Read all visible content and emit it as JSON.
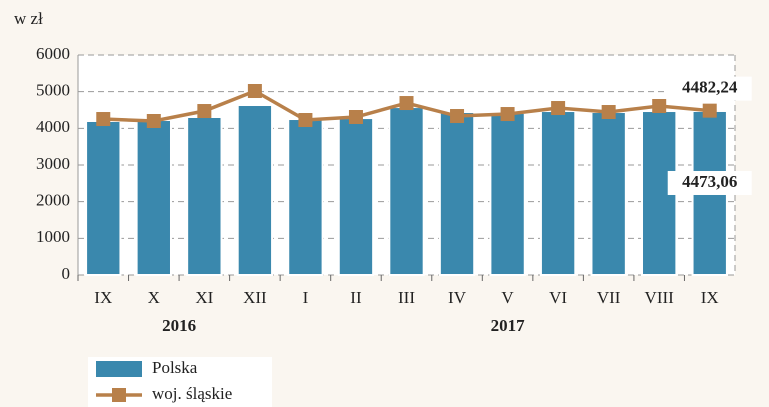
{
  "chart_data": {
    "type": "bar-line",
    "y_axis_label": "w zł",
    "categories": [
      "IX",
      "X",
      "XI",
      "XII",
      "I",
      "II",
      "III",
      "IV",
      "V",
      "VI",
      "VII",
      "VIII",
      "IX"
    ],
    "groups": [
      {
        "label": "2016",
        "count": 4
      },
      {
        "label": "2017",
        "count": 9
      }
    ],
    "series": [
      {
        "name": "Polska",
        "kind": "bar",
        "color": "#3a88ad",
        "values": [
          4200,
          4227,
          4309,
          4636,
          4254,
          4280,
          4580,
          4445,
          4418,
          4472,
          4445,
          4472,
          4473.06
        ],
        "value_labels": [
          null,
          null,
          null,
          null,
          null,
          null,
          null,
          null,
          null,
          null,
          null,
          null,
          "4473,06"
        ]
      },
      {
        "name": "woj. śląskie",
        "kind": "line",
        "color": "#b8804a",
        "values": [
          4254,
          4200,
          4472,
          5018,
          4227,
          4309,
          4690,
          4336,
          4390,
          4554,
          4445,
          4609,
          4482.24
        ],
        "value_labels": [
          null,
          null,
          null,
          null,
          null,
          null,
          null,
          null,
          null,
          null,
          null,
          null,
          "4482,24"
        ]
      }
    ],
    "ylim": [
      0,
      6000
    ],
    "yticks": [
      0,
      1000,
      2000,
      3000,
      4000,
      5000,
      6000
    ],
    "grid": true
  }
}
